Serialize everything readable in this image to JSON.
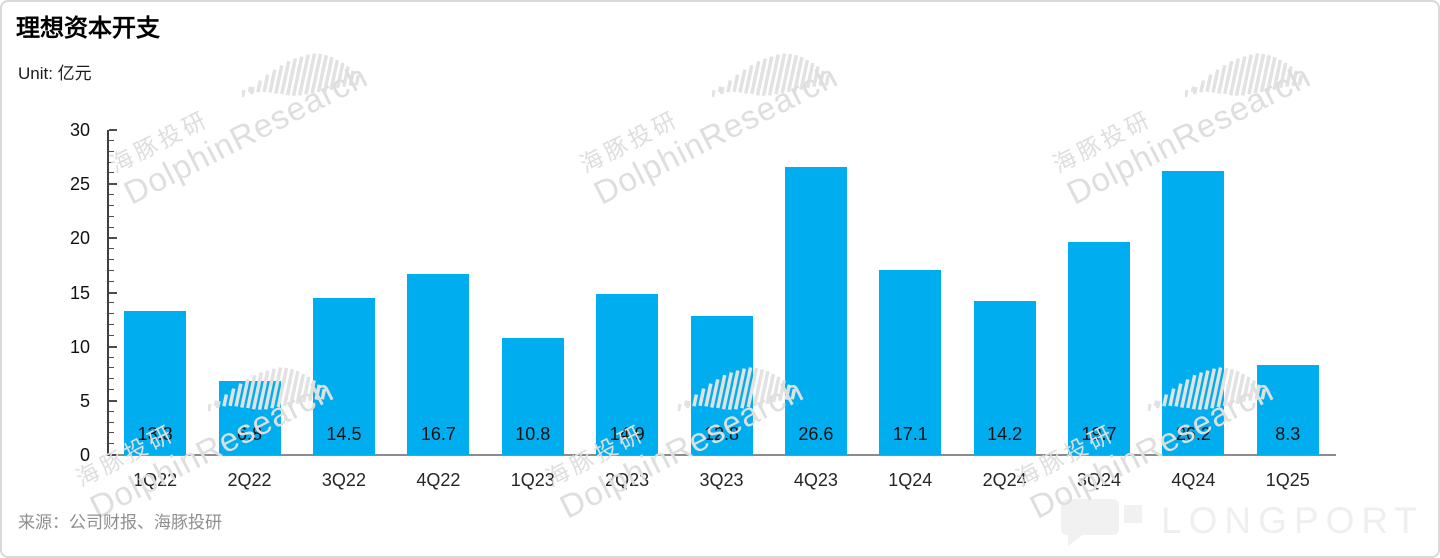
{
  "header": {
    "title": "理想资本开支",
    "unit_label": "Unit: 亿元"
  },
  "chart_data": {
    "type": "bar",
    "title": "理想资本开支",
    "unit": "亿元",
    "categories": [
      "1Q22",
      "2Q22",
      "3Q22",
      "4Q22",
      "1Q23",
      "2Q23",
      "3Q23",
      "4Q23",
      "1Q24",
      "2Q24",
      "3Q24",
      "4Q24",
      "1Q25"
    ],
    "values": [
      13.3,
      6.8,
      14.5,
      16.7,
      10.8,
      14.9,
      12.8,
      26.6,
      17.1,
      14.2,
      19.7,
      26.2,
      8.3
    ],
    "xlabel": "",
    "ylabel": "",
    "ylim": [
      0,
      30
    ],
    "ytick_step": 5,
    "minor_tick_step": 1,
    "ytick_labels": [
      "0",
      "5",
      "10",
      "15",
      "20",
      "25",
      "30"
    ],
    "bar_color": "#00AEEF",
    "value_labels_shown": true,
    "grid": false,
    "legend": "none"
  },
  "watermark": {
    "text_cn": "海豚投研",
    "text_en": "DolphinResearch"
  },
  "footer": {
    "source": "来源：公司财报、海豚投研",
    "brand": "LONGPORT"
  }
}
